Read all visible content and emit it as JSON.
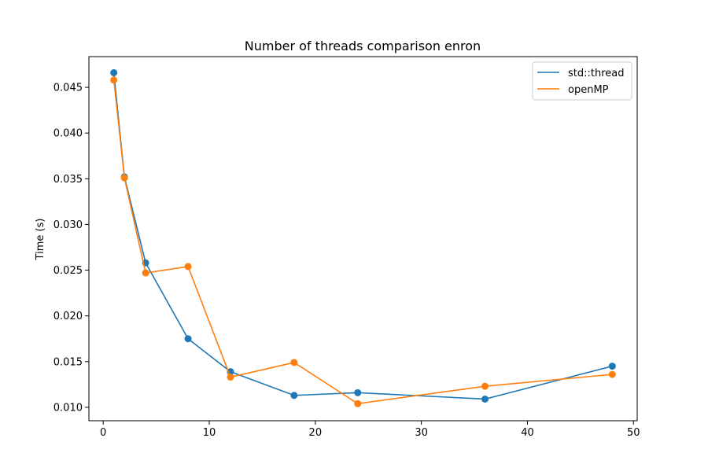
{
  "chart_data": {
    "type": "line",
    "title": "Number of threads comparison enron",
    "xlabel": "",
    "ylabel": "Time (s)",
    "xlim": [
      -1.35,
      50.35
    ],
    "ylim": [
      0.00853,
      0.04836
    ],
    "xticks": [
      0,
      10,
      20,
      30,
      40,
      50
    ],
    "xtick_labels": [
      "0",
      "10",
      "20",
      "30",
      "40",
      "50"
    ],
    "yticks": [
      0.01,
      0.015,
      0.02,
      0.025,
      0.03,
      0.035,
      0.04,
      0.045
    ],
    "ytick_labels": [
      "0.010",
      "0.015",
      "0.020",
      "0.025",
      "0.030",
      "0.035",
      "0.040",
      "0.045"
    ],
    "grid": false,
    "legend": {
      "position": "top-right"
    },
    "series": [
      {
        "name": "std::thread",
        "color": "#1f77b4",
        "marker": "circle",
        "x": [
          1,
          2,
          4,
          8,
          12,
          18,
          24,
          36,
          48
        ],
        "y": [
          0.0466,
          0.0352,
          0.0258,
          0.0175,
          0.0139,
          0.0113,
          0.0116,
          0.0109,
          0.0145
        ]
      },
      {
        "name": "openMP",
        "color": "#ff7f0e",
        "marker": "circle",
        "x": [
          1,
          2,
          4,
          8,
          12,
          18,
          24,
          36,
          48
        ],
        "y": [
          0.0458,
          0.0351,
          0.0247,
          0.0254,
          0.0133,
          0.0149,
          0.0104,
          0.0123,
          0.0136
        ]
      }
    ]
  }
}
